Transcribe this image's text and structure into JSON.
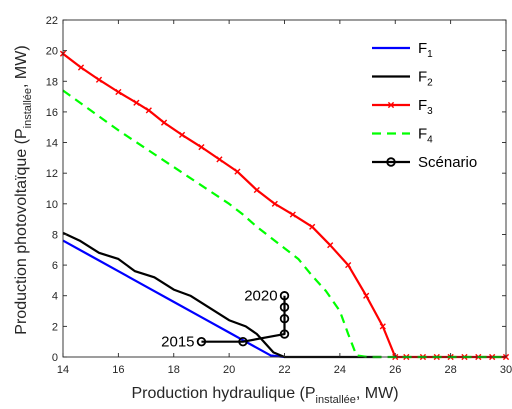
{
  "chart_data": {
    "type": "line",
    "xlabel": {
      "main": "Production hydraulique (P",
      "sub": "installée",
      "tail": ", MW)"
    },
    "ylabel": {
      "main": "Production photovoltaïque (P",
      "sub": "installée",
      "tail": ", MW)"
    },
    "xlim": [
      14,
      30
    ],
    "ylim": [
      0,
      22
    ],
    "xticks": [
      14,
      16,
      18,
      20,
      22,
      24,
      26,
      28,
      30
    ],
    "yticks": [
      0,
      2,
      4,
      6,
      8,
      10,
      12,
      14,
      16,
      18,
      20,
      22
    ],
    "grid": false,
    "legend_position": "top-right",
    "series": [
      {
        "name": "F",
        "name_sub": "1",
        "color": "#0000ff",
        "dash": "solid",
        "marker": "none",
        "x": [
          14,
          15,
          16,
          17,
          18,
          19,
          20,
          20.5,
          21,
          21.5,
          22
        ],
        "y": [
          7.6,
          6.6,
          5.6,
          4.6,
          3.6,
          2.6,
          1.6,
          1.1,
          0.6,
          0.1,
          0
        ]
      },
      {
        "name": "F",
        "name_sub": "2",
        "color": "#000000",
        "dash": "solid",
        "marker": "none",
        "x": [
          14,
          14.6,
          15.3,
          16,
          16.6,
          17.3,
          18,
          18.6,
          19.3,
          20,
          20.6,
          21,
          21.6,
          22,
          25.5
        ],
        "y": [
          8.1,
          7.6,
          6.8,
          6.4,
          5.6,
          5.2,
          4.4,
          4.0,
          3.2,
          2.4,
          2.0,
          1.5,
          0.3,
          0,
          0
        ]
      },
      {
        "name": "F",
        "name_sub": "3",
        "color": "#ff0000",
        "dash": "solid",
        "marker": "x",
        "x": [
          14,
          14.65,
          15.3,
          16,
          16.65,
          17.1,
          17.65,
          18.3,
          19,
          19.65,
          20.3,
          21,
          21.65,
          22.3,
          23,
          23.65,
          24.3,
          24.95,
          25.55,
          26,
          26.4,
          27,
          27.5,
          28,
          28.5,
          29,
          29.5,
          30
        ],
        "y": [
          19.8,
          18.9,
          18.1,
          17.3,
          16.6,
          16.1,
          15.3,
          14.5,
          13.7,
          12.9,
          12.1,
          10.9,
          10.0,
          9.3,
          8.5,
          7.3,
          6.0,
          4.0,
          2.0,
          0,
          0,
          0,
          0,
          0,
          0,
          0,
          0,
          0
        ]
      },
      {
        "name": "F",
        "name_sub": "4",
        "color": "#00ff00",
        "dash": "dashed",
        "marker": "none",
        "x": [
          14,
          15,
          16,
          17,
          18,
          19,
          20,
          20.5,
          21,
          21.5,
          22,
          22.5,
          23,
          23.5,
          24,
          24.3,
          24.6,
          25,
          26,
          27,
          28,
          29,
          30
        ],
        "y": [
          17.4,
          16.1,
          14.8,
          13.6,
          12.4,
          11.2,
          10.0,
          9.3,
          8.5,
          7.8,
          7.1,
          6.4,
          5.3,
          4.3,
          3.0,
          1.5,
          0.1,
          0,
          0,
          0,
          0,
          0,
          0
        ]
      },
      {
        "name": "Scénario",
        "name_sub": "",
        "color": "#000000",
        "dash": "solid",
        "marker": "o",
        "x": [
          19,
          20.5,
          22,
          22,
          22,
          22
        ],
        "y": [
          1.0,
          1.0,
          1.5,
          2.5,
          3.25,
          4.0
        ]
      }
    ],
    "annotations": [
      {
        "text": "2015",
        "x": 18.75,
        "y": 1.0,
        "anchor": "end"
      },
      {
        "text": "2020",
        "x": 21.75,
        "y": 4.0,
        "anchor": "end"
      }
    ]
  }
}
